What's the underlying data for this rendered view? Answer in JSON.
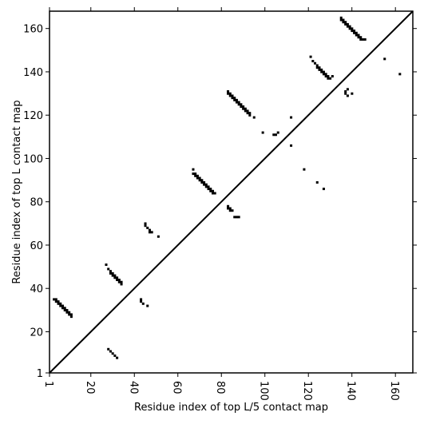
{
  "chart_data": {
    "type": "scatter",
    "xlabel": "Residue index of top L/5 contact map",
    "ylabel": "Residue index of top L contact map",
    "xlim": [
      1,
      168
    ],
    "ylim": [
      1,
      168
    ],
    "xticks": [
      1,
      20,
      40,
      60,
      80,
      100,
      120,
      140,
      160
    ],
    "yticks": [
      1,
      20,
      40,
      60,
      80,
      100,
      120,
      140,
      160
    ],
    "grid": false,
    "diagonal": true,
    "mark_color": "#000000",
    "upper_triangle_points": [
      [
        3,
        35
      ],
      [
        4,
        35
      ],
      [
        4,
        34
      ],
      [
        5,
        34
      ],
      [
        5,
        33
      ],
      [
        6,
        33
      ],
      [
        6,
        32
      ],
      [
        7,
        32
      ],
      [
        7,
        31
      ],
      [
        8,
        31
      ],
      [
        8,
        30
      ],
      [
        9,
        30
      ],
      [
        9,
        29
      ],
      [
        10,
        29
      ],
      [
        10,
        28
      ],
      [
        11,
        28
      ],
      [
        11,
        27
      ],
      [
        27,
        51
      ],
      [
        28,
        49
      ],
      [
        29,
        48
      ],
      [
        29,
        47
      ],
      [
        30,
        47
      ],
      [
        30,
        46
      ],
      [
        31,
        46
      ],
      [
        31,
        45
      ],
      [
        32,
        45
      ],
      [
        32,
        44
      ],
      [
        33,
        44
      ],
      [
        33,
        43
      ],
      [
        34,
        43
      ],
      [
        34,
        42
      ],
      [
        43,
        35
      ],
      [
        43,
        34
      ],
      [
        44,
        33
      ],
      [
        46,
        32
      ],
      [
        45,
        70
      ],
      [
        45,
        69
      ],
      [
        46,
        68
      ],
      [
        47,
        67
      ],
      [
        47,
        66
      ],
      [
        48,
        66
      ],
      [
        51,
        64
      ],
      [
        67,
        95
      ],
      [
        67,
        93
      ],
      [
        68,
        93
      ],
      [
        68,
        92
      ],
      [
        69,
        92
      ],
      [
        69,
        91
      ],
      [
        70,
        91
      ],
      [
        70,
        90
      ],
      [
        71,
        90
      ],
      [
        71,
        89
      ],
      [
        72,
        89
      ],
      [
        72,
        88
      ],
      [
        73,
        88
      ],
      [
        73,
        87
      ],
      [
        74,
        87
      ],
      [
        74,
        86
      ],
      [
        75,
        86
      ],
      [
        75,
        85
      ],
      [
        76,
        85
      ],
      [
        76,
        84
      ],
      [
        77,
        84
      ],
      [
        83,
        78
      ],
      [
        83,
        77
      ],
      [
        84,
        77
      ],
      [
        84,
        76
      ],
      [
        85,
        76
      ],
      [
        86,
        73
      ],
      [
        87,
        73
      ],
      [
        88,
        73
      ],
      [
        83,
        131
      ],
      [
        83,
        130
      ],
      [
        84,
        130
      ],
      [
        84,
        129
      ],
      [
        85,
        129
      ],
      [
        85,
        128
      ],
      [
        86,
        128
      ],
      [
        86,
        127
      ],
      [
        87,
        127
      ],
      [
        87,
        126
      ],
      [
        88,
        126
      ],
      [
        88,
        125
      ],
      [
        89,
        125
      ],
      [
        89,
        124
      ],
      [
        90,
        124
      ],
      [
        90,
        123
      ],
      [
        91,
        123
      ],
      [
        91,
        122
      ],
      [
        92,
        122
      ],
      [
        92,
        121
      ],
      [
        93,
        121
      ],
      [
        93,
        120
      ],
      [
        95,
        119
      ],
      [
        99,
        112
      ],
      [
        104,
        111
      ],
      [
        105,
        111
      ],
      [
        106,
        112
      ],
      [
        112,
        119
      ],
      [
        112,
        106
      ],
      [
        118,
        95
      ],
      [
        124,
        89
      ],
      [
        127,
        86
      ],
      [
        121,
        147
      ],
      [
        122,
        145
      ],
      [
        123,
        144
      ],
      [
        124,
        143
      ],
      [
        124,
        142
      ],
      [
        125,
        142
      ],
      [
        125,
        141
      ],
      [
        126,
        141
      ],
      [
        126,
        140
      ],
      [
        127,
        140
      ],
      [
        127,
        139
      ],
      [
        128,
        139
      ],
      [
        128,
        138
      ],
      [
        129,
        138
      ],
      [
        129,
        137
      ],
      [
        130,
        137
      ],
      [
        131,
        138
      ],
      [
        135,
        165
      ],
      [
        135,
        164
      ],
      [
        136,
        164
      ],
      [
        136,
        163
      ],
      [
        137,
        163
      ],
      [
        137,
        162
      ],
      [
        138,
        162
      ],
      [
        138,
        161
      ],
      [
        139,
        161
      ],
      [
        139,
        160
      ],
      [
        140,
        160
      ],
      [
        140,
        159
      ],
      [
        141,
        159
      ],
      [
        141,
        158
      ],
      [
        142,
        158
      ],
      [
        142,
        157
      ],
      [
        143,
        157
      ],
      [
        143,
        156
      ],
      [
        144,
        156
      ],
      [
        144,
        155
      ],
      [
        145,
        155
      ],
      [
        146,
        155
      ],
      [
        137,
        131
      ],
      [
        137,
        130
      ],
      [
        138,
        132
      ],
      [
        138,
        129
      ],
      [
        140,
        130
      ],
      [
        155,
        146
      ],
      [
        162,
        139
      ]
    ],
    "lower_triangle_points": [
      [
        28,
        12
      ],
      [
        29,
        11
      ],
      [
        30,
        10
      ],
      [
        31,
        9
      ],
      [
        32,
        8
      ]
    ]
  }
}
